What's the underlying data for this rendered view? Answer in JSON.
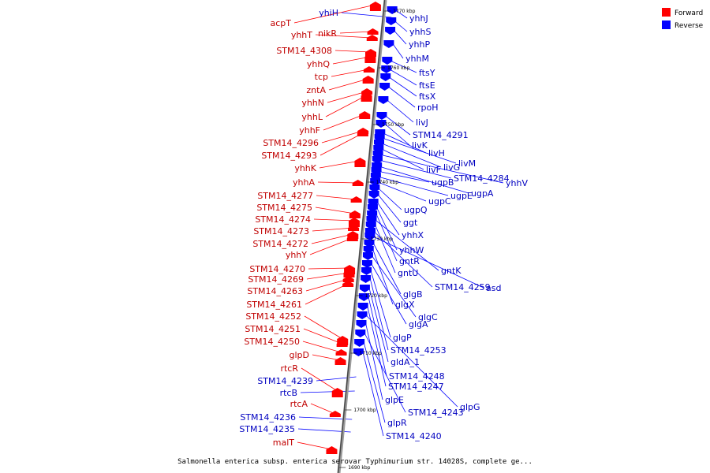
{
  "caption": "Salmonella enterica subsp. enterica serovar Typhimurium str. 14028S, complete ge...",
  "legend": [
    {
      "label": "Forward",
      "color": "#ff0000"
    },
    {
      "label": "Reverse",
      "color": "#0000ff"
    }
  ],
  "ticks": [
    "1770 kbp",
    "1760 kbp",
    "1750 kbp",
    "1740 kbp",
    "1730 kbp",
    "1720 kbp",
    "1710 kbp",
    "1700 kbp",
    "1690 kbp"
  ],
  "forward_genes": [
    "acpT",
    "nikR",
    "yhhT",
    "STM14_4308",
    "yhhQ",
    "tcp",
    "zntA",
    "yhhN",
    "yhhL",
    "yhhF",
    "STM14_4296",
    "STM14_4293",
    "yhhK",
    "yhhA",
    "STM14_4277",
    "STM14_4275",
    "STM14_4274",
    "STM14_4273",
    "STM14_4272",
    "yhhY",
    "STM14_4270",
    "STM14_4269",
    "STM14_4263",
    "STM14_4261",
    "STM14_4252",
    "STM14_4251",
    "STM14_4250",
    "glpD",
    "rtcR",
    "rtcA",
    "malT"
  ],
  "reverse_left_genes": [
    "yhiH",
    "STM14_4239",
    "rtcB",
    "STM14_4236",
    "STM14_4235"
  ],
  "reverse_genes": [
    "yhhJ",
    "yhhS",
    "yhhP",
    "yhhM",
    "ftsY",
    "ftsE",
    "ftsX",
    "rpoH",
    "livJ",
    "STM14_4291",
    "livK",
    "livH",
    "livM",
    "livG",
    "livF",
    "yhhV",
    "STM14_4284",
    "ugpA",
    "ugpB",
    "ugpE",
    "ugpC",
    "ugpQ",
    "ggt",
    "yhhX",
    "yhhW",
    "gntR",
    "gntK",
    "gntU",
    "STM14_4259",
    "asd",
    "glgB",
    "glgX",
    "glgC",
    "glgA",
    "glgP",
    "STM14_4253",
    "gldA_1",
    "STM14_4248",
    "STM14_4247",
    "glpG",
    "glpE",
    "STM14_4243",
    "glpR",
    "STM14_4240"
  ]
}
